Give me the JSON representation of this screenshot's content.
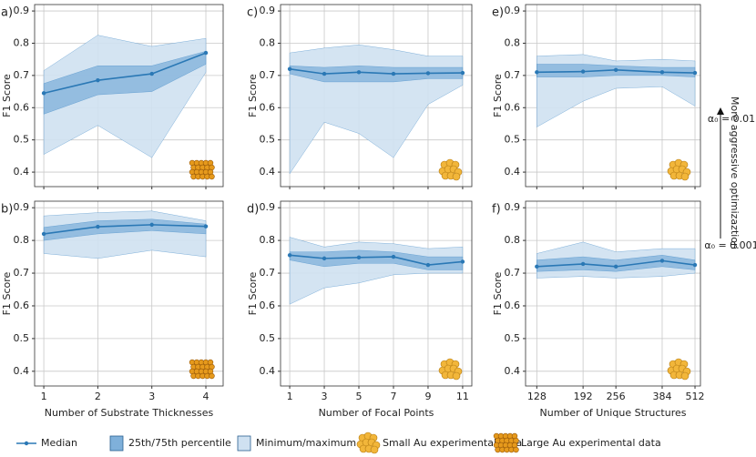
{
  "chart_data": [
    {
      "type": "line",
      "panel": "a)",
      "ylabel": "F1 Score",
      "x": [
        1,
        2,
        3,
        4
      ],
      "xlim": [
        0.83,
        4.32
      ],
      "xticks": [
        1,
        2,
        3,
        4
      ],
      "xticklabels": false,
      "ylim": [
        0.355,
        0.92
      ],
      "yticks": [
        0.4,
        0.5,
        0.6,
        0.7,
        0.8,
        0.9
      ],
      "grid": true,
      "sample": "large",
      "series": [
        {
          "name": "Median",
          "color": "#2a78b5",
          "values": [
            0.645,
            0.685,
            0.705,
            0.77
          ]
        }
      ],
      "bands": [
        {
          "name": "Minimum/maximum",
          "color": "#cfe1f1",
          "lower": [
            0.455,
            0.545,
            0.445,
            0.71
          ],
          "upper": [
            0.715,
            0.825,
            0.79,
            0.815
          ]
        },
        {
          "name": "25th/75th percentile",
          "color": "#7fb0da",
          "lower": [
            0.58,
            0.64,
            0.65,
            0.735
          ],
          "upper": [
            0.675,
            0.73,
            0.73,
            0.775
          ]
        }
      ]
    },
    {
      "type": "line",
      "panel": "b)",
      "ylabel": "F1 Score",
      "xlabel": "Number of Substrate Thicknesses",
      "x": [
        1,
        2,
        3,
        4
      ],
      "xlim": [
        0.83,
        4.32
      ],
      "xticks": [
        1,
        2,
        3,
        4
      ],
      "xticklabels": true,
      "ylim": [
        0.355,
        0.92
      ],
      "yticks": [
        0.4,
        0.5,
        0.6,
        0.7,
        0.8,
        0.9
      ],
      "grid": true,
      "sample": "large",
      "series": [
        {
          "color": "#2a78b5",
          "values": [
            0.82,
            0.842,
            0.848,
            0.843
          ]
        }
      ],
      "bands": [
        {
          "color": "#cfe1f1",
          "lower": [
            0.76,
            0.745,
            0.77,
            0.75
          ],
          "upper": [
            0.875,
            0.885,
            0.89,
            0.86
          ]
        },
        {
          "color": "#7fb0da",
          "lower": [
            0.8,
            0.82,
            0.83,
            0.82
          ],
          "upper": [
            0.84,
            0.86,
            0.865,
            0.85
          ]
        }
      ]
    },
    {
      "type": "line",
      "panel": "c)",
      "ylabel": "F1 Score",
      "x": [
        1,
        3,
        5,
        7,
        9,
        11
      ],
      "xlim": [
        0.47,
        11.53
      ],
      "xticks": [
        1,
        3,
        5,
        7,
        9,
        11
      ],
      "xticklabels": false,
      "ylim": [
        0.355,
        0.92
      ],
      "yticks": [
        0.4,
        0.5,
        0.6,
        0.7,
        0.8,
        0.9
      ],
      "grid": true,
      "sample": "small",
      "series": [
        {
          "color": "#2a78b5",
          "values": [
            0.72,
            0.705,
            0.71,
            0.705,
            0.707,
            0.708
          ]
        }
      ],
      "bands": [
        {
          "color": "#cfe1f1",
          "lower": [
            0.395,
            0.555,
            0.52,
            0.445,
            0.61,
            0.67
          ],
          "upper": [
            0.77,
            0.785,
            0.795,
            0.78,
            0.76,
            0.76
          ]
        },
        {
          "color": "#7fb0da",
          "lower": [
            0.705,
            0.68,
            0.68,
            0.68,
            0.69,
            0.69
          ],
          "upper": [
            0.73,
            0.725,
            0.73,
            0.725,
            0.725,
            0.725
          ]
        }
      ]
    },
    {
      "type": "line",
      "panel": "d)",
      "ylabel": "F1 Score",
      "xlabel": "Number of Focal Points",
      "x": [
        1,
        3,
        5,
        7,
        9,
        11
      ],
      "xlim": [
        0.47,
        11.53
      ],
      "xticks": [
        1,
        3,
        5,
        7,
        9,
        11
      ],
      "xticklabels": true,
      "ylim": [
        0.355,
        0.92
      ],
      "yticks": [
        0.4,
        0.5,
        0.6,
        0.7,
        0.8,
        0.9
      ],
      "grid": true,
      "sample": "small",
      "series": [
        {
          "color": "#2a78b5",
          "values": [
            0.755,
            0.745,
            0.748,
            0.75,
            0.725,
            0.735
          ]
        }
      ],
      "bands": [
        {
          "color": "#cfe1f1",
          "lower": [
            0.605,
            0.655,
            0.67,
            0.695,
            0.7,
            0.7
          ],
          "upper": [
            0.81,
            0.78,
            0.795,
            0.79,
            0.775,
            0.78
          ]
        },
        {
          "color": "#7fb0da",
          "lower": [
            0.74,
            0.72,
            0.73,
            0.73,
            0.71,
            0.71
          ],
          "upper": [
            0.765,
            0.765,
            0.77,
            0.765,
            0.75,
            0.75
          ]
        }
      ]
    },
    {
      "type": "line",
      "panel": "e)",
      "ylabel": "F1 Score",
      "x": [
        128,
        192,
        256,
        384,
        512
      ],
      "xscale": "log",
      "xlim": [
        116,
        537
      ],
      "xticks": [
        128,
        192,
        256,
        384,
        512
      ],
      "xticklabels": false,
      "ylim": [
        0.355,
        0.92
      ],
      "yticks": [
        0.4,
        0.5,
        0.6,
        0.7,
        0.8,
        0.9
      ],
      "grid": true,
      "sample": "small",
      "series": [
        {
          "color": "#2a78b5",
          "values": [
            0.71,
            0.712,
            0.717,
            0.71,
            0.708
          ]
        }
      ],
      "bands": [
        {
          "color": "#cfe1f1",
          "lower": [
            0.54,
            0.62,
            0.66,
            0.665,
            0.605
          ],
          "upper": [
            0.76,
            0.765,
            0.745,
            0.75,
            0.745
          ]
        },
        {
          "color": "#7fb0da",
          "lower": [
            0.695,
            0.695,
            0.7,
            0.7,
            0.695
          ],
          "upper": [
            0.735,
            0.735,
            0.73,
            0.725,
            0.725
          ]
        }
      ]
    },
    {
      "type": "line",
      "panel": "f)",
      "ylabel": "F1 Score",
      "xlabel": "Number of Unique Structures",
      "x": [
        128,
        192,
        256,
        384,
        512
      ],
      "xscale": "log",
      "xlim": [
        116,
        537
      ],
      "xticks": [
        128,
        192,
        256,
        384,
        512
      ],
      "xticklabels": true,
      "ylim": [
        0.355,
        0.92
      ],
      "yticks": [
        0.4,
        0.5,
        0.6,
        0.7,
        0.8,
        0.9
      ],
      "grid": true,
      "sample": "small",
      "series": [
        {
          "color": "#2a78b5",
          "values": [
            0.72,
            0.728,
            0.72,
            0.738,
            0.725
          ]
        }
      ],
      "bands": [
        {
          "color": "#cfe1f1",
          "lower": [
            0.685,
            0.69,
            0.685,
            0.69,
            0.7
          ],
          "upper": [
            0.76,
            0.795,
            0.765,
            0.775,
            0.775
          ]
        },
        {
          "color": "#7fb0da",
          "lower": [
            0.705,
            0.71,
            0.705,
            0.72,
            0.71
          ],
          "upper": [
            0.74,
            0.75,
            0.74,
            0.755,
            0.74
          ]
        }
      ]
    }
  ],
  "legend": {
    "small": "Small Au experimental data",
    "large": "Large Au experimental data"
  },
  "annotation": {
    "top": "α₀ = 0.01",
    "arrow_label": "More aggressive optimizaztion",
    "bottom": "α₀ = 0.001"
  }
}
